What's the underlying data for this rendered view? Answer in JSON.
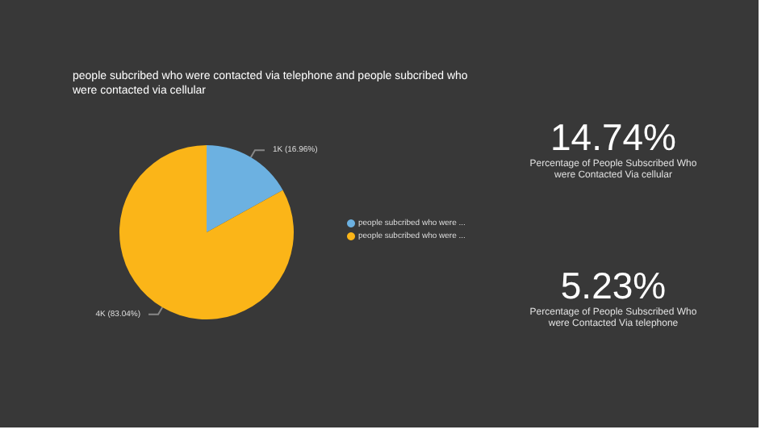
{
  "chart_data": [
    {
      "type": "pie",
      "title": "people subcribed who were contacted via telephone and people subcribed who were contacted via cellular",
      "categories": [
        "people subcribed who were ...",
        "people subcribed who were ..."
      ],
      "values": [
        16.96,
        83.04
      ],
      "colors": [
        "#6cb1e1",
        "#fbb518"
      ],
      "value_labels": [
        "1K (16.96%)",
        "4K (83.04%)"
      ],
      "legend": "right"
    },
    {
      "type": "other",
      "annotations": [
        "14.74%",
        "Percentage of People Subscribed Who were Contacted Via cellular"
      ]
    },
    {
      "type": "other",
      "annotations": [
        "5.23%",
        "Percentage of People Subscribed Who were Contacted Via telephone"
      ]
    }
  ]
}
